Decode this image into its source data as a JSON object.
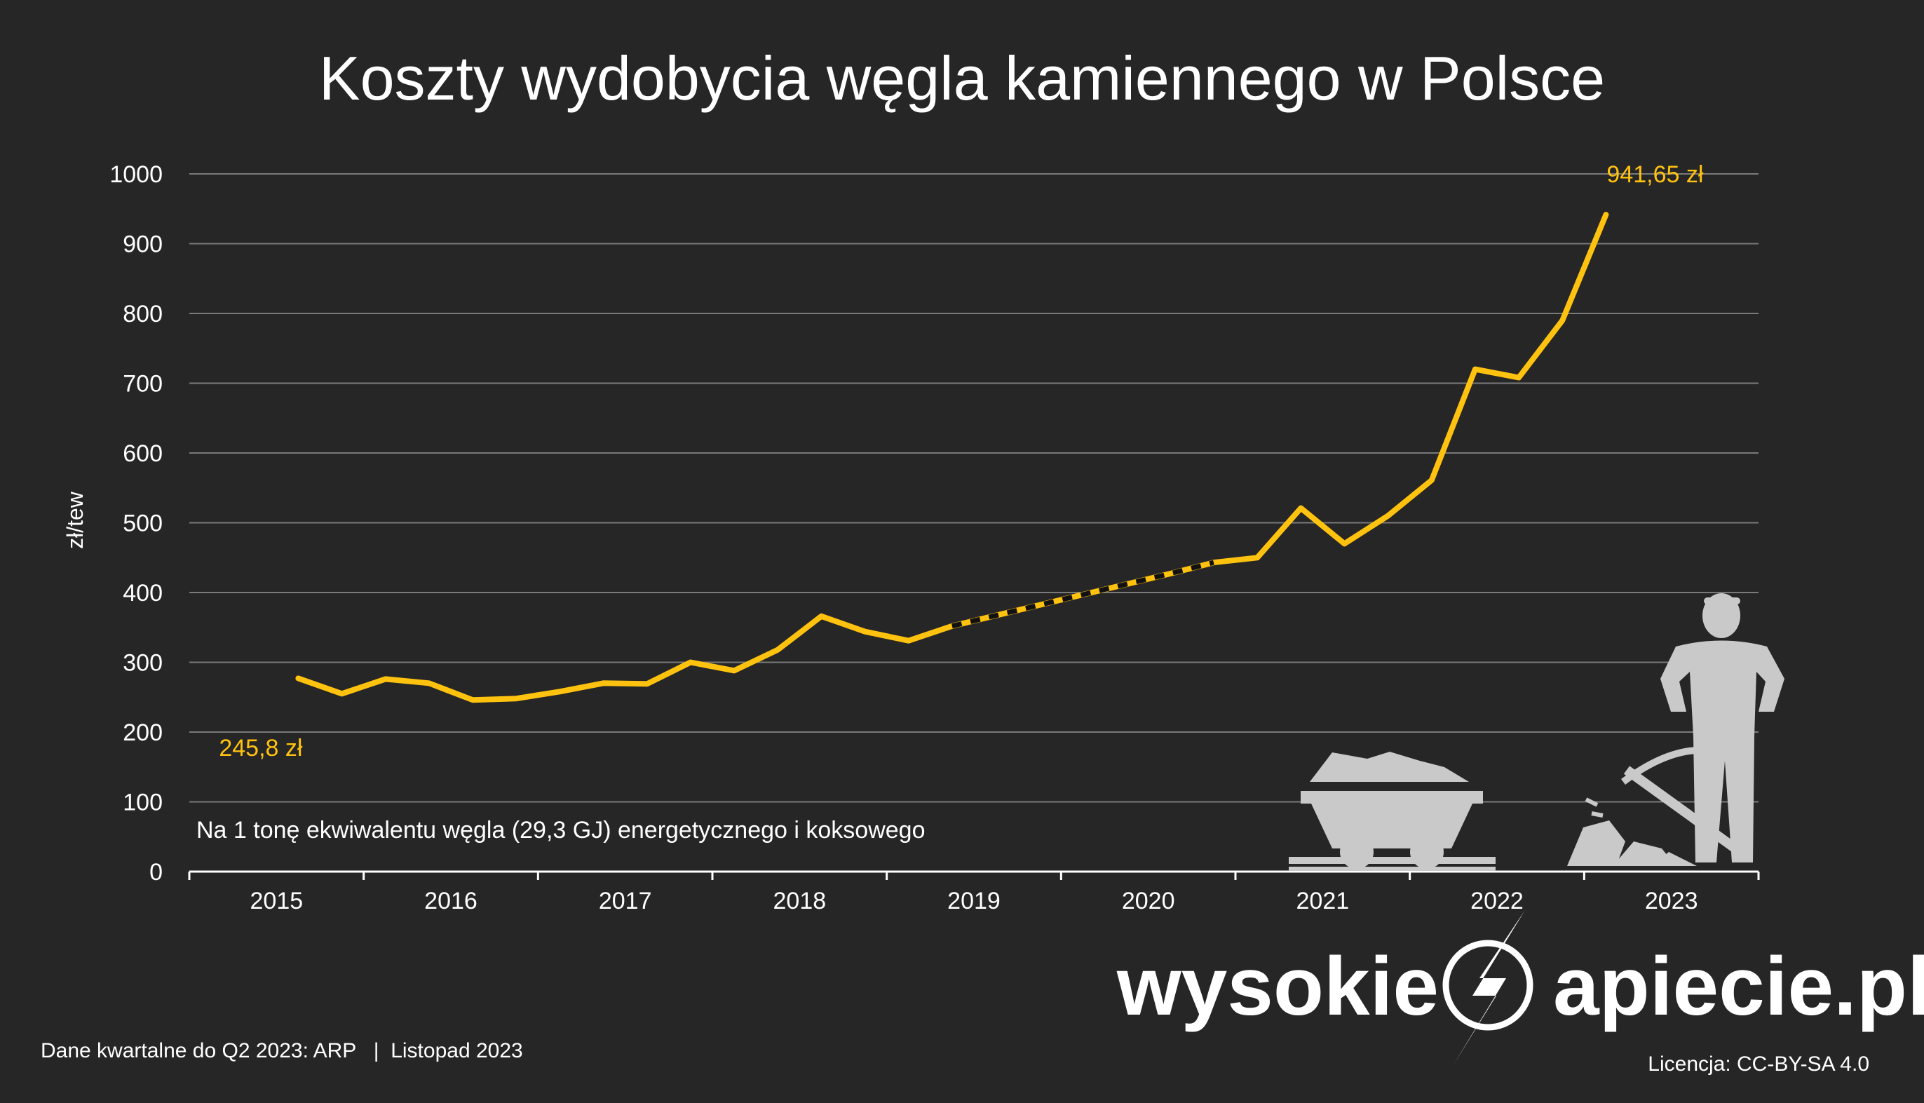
{
  "title": "Koszty wydobycia węgla kamiennego w Polsce",
  "colors": {
    "background": "#262626",
    "line": "#ffc20e",
    "dash": "#111111",
    "grid": "#7a7a7a",
    "text": "#ffffff",
    "icons": "#c9c9c9"
  },
  "chart_data": {
    "type": "line",
    "title": "Koszty wydobycia węgla kamiennego w Polsce",
    "ylabel": "zł/tew",
    "xlabel": "",
    "ylim": [
      0,
      1000
    ],
    "xlim": [
      2015,
      2024
    ],
    "yticks": [
      "0",
      "100",
      "200",
      "300",
      "400",
      "500",
      "600",
      "700",
      "800",
      "900",
      "1000"
    ],
    "xticks": [
      "2015",
      "2016",
      "2017",
      "2018",
      "2019",
      "2020",
      "2021",
      "2022",
      "2023"
    ],
    "grid": true,
    "series": [
      {
        "x": [
          2015.625,
          2015.875,
          2016.125,
          2016.375,
          2016.625,
          2016.875,
          2017.125,
          2017.375,
          2017.625,
          2017.875,
          2018.125,
          2018.375,
          2018.625,
          2018.875,
          2019.125,
          2019.375,
          2019.625,
          2019.875,
          2020.125,
          2020.375,
          2020.625,
          2020.875,
          2021.125,
          2021.375,
          2021.625,
          2021.875,
          2022.125,
          2022.375,
          2022.625,
          2022.875,
          2023.125,
          2023.375
        ],
        "values": [
          277,
          255,
          276,
          270,
          246,
          248,
          258,
          270,
          269,
          300,
          288,
          318,
          366,
          344,
          331,
          352,
          367,
          382,
          397,
          412,
          427,
          443,
          450,
          521,
          470,
          510,
          561,
          720,
          708,
          790,
          941.65,
          null
        ],
        "estimated_range": [
          2019.375,
          2020.875
        ]
      }
    ],
    "annotations": [
      {
        "text": "941,65 zł",
        "x": 2023.125,
        "y": 941.65
      },
      {
        "text": "245,8 zł",
        "x": 2016.375,
        "y": 246
      }
    ],
    "note": "Na 1 tonę ekwiwalentu węgla (29,3 GJ) energetycznego i koksowego"
  },
  "footer": {
    "source": "Dane kwartalne do Q2 2023: ARP   |  Listopad 2023",
    "license": "Licencja: CC-BY-SA 4.0"
  },
  "brand": {
    "left": "wysokie",
    "right": "apiecie.pl"
  },
  "icons": [
    "mine-cart-icon",
    "pickaxe-icon",
    "miner-icon"
  ]
}
